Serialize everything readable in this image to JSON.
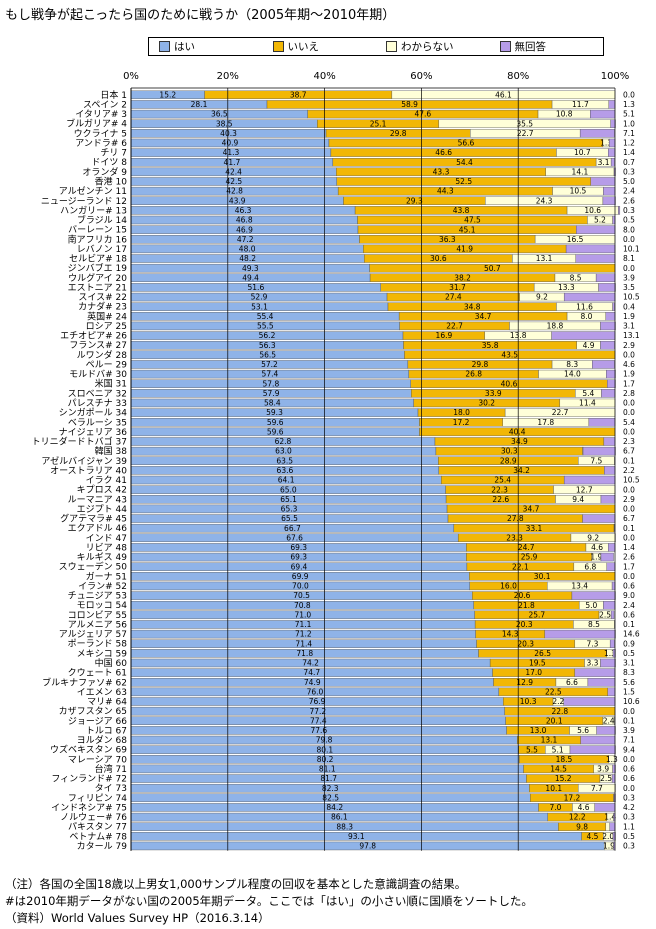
{
  "title": "もし戦争が起こったら国のために戦うか（2005年期〜2010年期）",
  "notes": [
    "（注）各国の全国18歳以上男女1,000サンプル程度の回収を基本とした意識調査の結果。",
    "#は2010年期データがない国の2005年期データ。ここでは「はい」の小さい順に国順をソートした。",
    "（資料）World Values Survey HP（2016.3.14）"
  ],
  "chart_data": {
    "type": "bar",
    "orientation": "horizontal",
    "stacked": true,
    "xlim": [
      0,
      100
    ],
    "xticks": [
      "0%",
      "20%",
      "40%",
      "60%",
      "80%",
      "100%"
    ],
    "grid": true,
    "legend_position": "top",
    "series": [
      {
        "name": "はい",
        "color": "#8fb3e8"
      },
      {
        "name": "いいえ",
        "color": "#f2b705"
      },
      {
        "name": "わからない",
        "color": "#ffffd8"
      },
      {
        "name": "無回答",
        "color": "#b69ce8"
      }
    ],
    "categories": [
      "日本 1",
      "スペイン 2",
      "イタリア# 3",
      "ブルガリア# 4",
      "ウクライナ 5",
      "アンドラ# 6",
      "チリ 7",
      "ドイツ 8",
      "オランダ 9",
      "香港 10",
      "アルゼンチン 11",
      "ニュージーランド 12",
      "ハンガリー# 13",
      "ブラジル 14",
      "バーレーン 15",
      "南アフリカ 16",
      "レバノン 17",
      "セルビア# 18",
      "ジンバブエ 19",
      "ウルグアイ 20",
      "エストニア 21",
      "スイス# 22",
      "カナダ# 23",
      "英国# 24",
      "ロシア 25",
      "エチオピア# 26",
      "フランス# 27",
      "ルワンダ 28",
      "ペルー 29",
      "モルドバ# 30",
      "米国 31",
      "スロベニア 32",
      "パレスチナ 33",
      "シンガポール 34",
      "ベラルーシ 35",
      "ナイジェリア 36",
      "トリニダードトバゴ 37",
      "韓国 38",
      "アゼルバイジャン 39",
      "オーストラリア 40",
      "イラク 41",
      "キプロス 42",
      "ルーマニア 43",
      "エジプト 44",
      "グアテマラ# 45",
      "エクアドル 46",
      "インド 47",
      "リビア 48",
      "キルギス 49",
      "スウェーデン 50",
      "ガーナ 51",
      "イラン# 52",
      "チュニジア 53",
      "モロッコ 54",
      "コロンビア 55",
      "アルメニア 56",
      "アルジェリア 57",
      "ポーランド 58",
      "メキシコ 59",
      "中国 60",
      "クウェート 61",
      "ブルキナファソ# 62",
      "イエメン 63",
      "マリ# 64",
      "カザフスタン 65",
      "ジョージア 66",
      "トルコ 67",
      "ヨルダン 68",
      "ウズベキスタン 69",
      "マレーシア 70",
      "台湾 71",
      "フィンランド# 72",
      "タイ 73",
      "フィリピン 74",
      "インドネシア# 75",
      "ノルウェー# 76",
      "パキスタン 77",
      "ベトナム# 78",
      "カタール 79"
    ],
    "values": [
      [
        15.2,
        38.7,
        46.1,
        0.0
      ],
      [
        28.1,
        58.9,
        11.7,
        1.3
      ],
      [
        36.5,
        47.6,
        10.8,
        5.1
      ],
      [
        38.5,
        25.1,
        35.5,
        1.0
      ],
      [
        40.3,
        29.8,
        22.7,
        7.1
      ],
      [
        40.9,
        56.6,
        1.3,
        1.2
      ],
      [
        41.3,
        46.6,
        10.7,
        1.4
      ],
      [
        41.7,
        54.4,
        3.1,
        0.7
      ],
      [
        42.4,
        43.3,
        14.1,
        0.3
      ],
      [
        42.5,
        52.5,
        0.0,
        5.0
      ],
      [
        42.8,
        44.3,
        10.5,
        2.4
      ],
      [
        43.9,
        29.3,
        24.3,
        2.6
      ],
      [
        46.3,
        43.8,
        10.6,
        0.3
      ],
      [
        46.8,
        47.5,
        5.2,
        0.5
      ],
      [
        46.9,
        45.1,
        0.0,
        8.0
      ],
      [
        47.2,
        36.3,
        16.5,
        0.0
      ],
      [
        48.0,
        41.9,
        0.0,
        10.1
      ],
      [
        48.2,
        30.6,
        13.1,
        8.1
      ],
      [
        49.3,
        50.7,
        0.0,
        0.0
      ],
      [
        49.4,
        38.2,
        8.5,
        3.9
      ],
      [
        51.6,
        31.7,
        13.3,
        3.5
      ],
      [
        52.9,
        27.4,
        9.2,
        10.5
      ],
      [
        53.1,
        34.8,
        11.6,
        0.4
      ],
      [
        55.4,
        34.7,
        8.0,
        1.9
      ],
      [
        55.5,
        22.7,
        18.8,
        3.1
      ],
      [
        56.2,
        16.9,
        13.8,
        13.1
      ],
      [
        56.3,
        35.8,
        4.9,
        2.9
      ],
      [
        56.5,
        43.5,
        0.0,
        0.0
      ],
      [
        57.2,
        29.8,
        8.3,
        4.6
      ],
      [
        57.4,
        26.8,
        14.0,
        1.9
      ],
      [
        57.8,
        40.6,
        0.0,
        1.7
      ],
      [
        57.9,
        33.9,
        5.4,
        2.8
      ],
      [
        58.4,
        30.2,
        11.4,
        0.0
      ],
      [
        59.3,
        18.0,
        22.7,
        0.0
      ],
      [
        59.6,
        17.2,
        17.8,
        5.4
      ],
      [
        59.6,
        40.4,
        0.0,
        0.0
      ],
      [
        62.8,
        34.9,
        0.0,
        2.3
      ],
      [
        63.0,
        30.3,
        0.1,
        6.7
      ],
      [
        63.5,
        28.9,
        7.5,
        0.1
      ],
      [
        63.6,
        34.2,
        0.0,
        2.2
      ],
      [
        64.1,
        25.4,
        0.0,
        10.5
      ],
      [
        65.0,
        22.3,
        12.7,
        0.0
      ],
      [
        65.1,
        22.6,
        9.4,
        2.9
      ],
      [
        65.3,
        34.7,
        0.0,
        0.0
      ],
      [
        65.5,
        27.8,
        0.0,
        6.7
      ],
      [
        66.7,
        33.1,
        0.1,
        0.1
      ],
      [
        67.6,
        23.3,
        9.2,
        0.0
      ],
      [
        69.3,
        24.7,
        4.6,
        1.4
      ],
      [
        69.3,
        25.9,
        1.9,
        2.6
      ],
      [
        69.4,
        22.1,
        6.8,
        1.7
      ],
      [
        69.9,
        30.1,
        0.0,
        0.0
      ],
      [
        70.0,
        16.0,
        13.4,
        0.6
      ],
      [
        70.5,
        20.6,
        0.0,
        9.0
      ],
      [
        70.8,
        21.8,
        5.0,
        2.4
      ],
      [
        71.0,
        25.7,
        2.5,
        0.6
      ],
      [
        71.1,
        20.3,
        8.5,
        0.1
      ],
      [
        71.2,
        14.3,
        0.0,
        14.6
      ],
      [
        71.4,
        20.3,
        7.3,
        0.9
      ],
      [
        71.8,
        26.5,
        1.3,
        0.5
      ],
      [
        74.2,
        19.5,
        3.3,
        3.1
      ],
      [
        74.7,
        17.0,
        0.0,
        8.3
      ],
      [
        74.9,
        12.9,
        6.6,
        5.6
      ],
      [
        76.0,
        22.5,
        0.0,
        1.5
      ],
      [
        76.9,
        10.3,
        2.2,
        10.6
      ],
      [
        77.2,
        22.8,
        0.0,
        0.0
      ],
      [
        77.4,
        20.1,
        2.4,
        0.1
      ],
      [
        77.6,
        13.0,
        5.6,
        3.9
      ],
      [
        79.8,
        13.1,
        0.0,
        7.1
      ],
      [
        80.1,
        5.5,
        5.1,
        9.4
      ],
      [
        80.2,
        18.5,
        1.3,
        0.0
      ],
      [
        81.1,
        14.5,
        3.9,
        0.6
      ],
      [
        81.7,
        15.2,
        2.5,
        0.6
      ],
      [
        82.3,
        10.1,
        7.7,
        0.0
      ],
      [
        82.5,
        17.2,
        0.1,
        0.3
      ],
      [
        84.2,
        7.0,
        4.6,
        4.2
      ],
      [
        86.1,
        12.2,
        1.4,
        0.3
      ],
      [
        88.3,
        9.8,
        0.8,
        1.1
      ],
      [
        93.1,
        4.5,
        2.0,
        0.5
      ],
      [
        97.8,
        0.0,
        1.9,
        0.3
      ]
    ]
  }
}
